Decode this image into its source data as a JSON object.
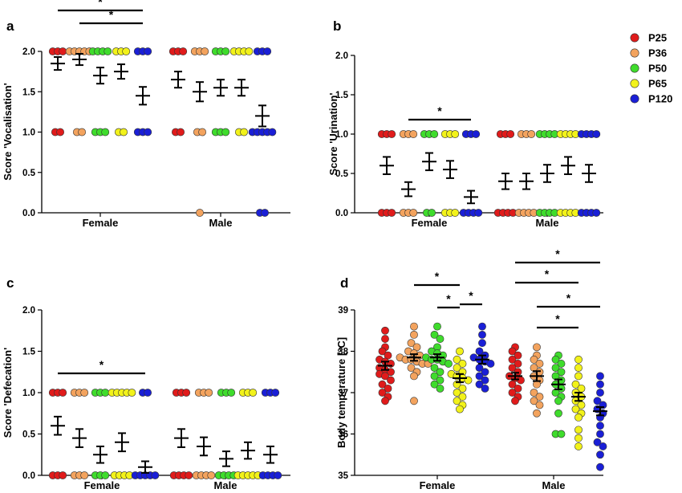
{
  "colors": {
    "P25": "#e01b1b",
    "P36": "#f3a35e",
    "P50": "#3fdc2c",
    "P65": "#f2f21a",
    "P120": "#1a1fd6"
  },
  "legend": [
    "P25",
    "P36",
    "P50",
    "P65",
    "P120"
  ],
  "chart_data": [
    {
      "panel": "a",
      "type": "scatter",
      "ylabel": "Score 'Vocalisation'",
      "ylim": [
        0,
        2.0
      ],
      "yticks": [
        "0.0",
        "0.5",
        "1.0",
        "1.5",
        "2.0"
      ],
      "categories": [
        "Female",
        "Male"
      ],
      "groups": [
        "P25",
        "P36",
        "P50",
        "P65",
        "P120"
      ],
      "means": [
        [
          1.85,
          1.9,
          1.7,
          1.75,
          1.45
        ],
        [
          1.65,
          1.5,
          1.55,
          1.55,
          1.2
        ]
      ],
      "sem": [
        [
          0.08,
          0.07,
          0.1,
          0.09,
          0.11
        ],
        [
          0.1,
          0.12,
          0.1,
          0.1,
          0.13
        ]
      ],
      "points": [
        [
          {
            "2.0": 3,
            "1.0": 2
          },
          {
            "2.0": 5,
            "1.0": 2
          },
          {
            "2.0": 4,
            "1.0": 3
          },
          {
            "2.0": 3,
            "1.0": 2
          },
          {
            "2.0": 3,
            "1.0": 3
          }
        ],
        [
          {
            "2.0": 3,
            "1.0": 2
          },
          {
            "2.0": 3,
            "1.0": 2,
            "0.0": 1
          },
          {
            "2.0": 3,
            "1.0": 3
          },
          {
            "2.0": 4,
            "1.0": 2
          },
          {
            "2.0": 3,
            "1.0": 5,
            "0.0": 2
          }
        ]
      ],
      "significance": [
        {
          "category": "Female",
          "from": "P25",
          "to": "P120",
          "label": "*"
        },
        {
          "category": "Female",
          "from": "P36",
          "to": "P120",
          "label": "*"
        }
      ]
    },
    {
      "panel": "b",
      "type": "scatter",
      "ylabel": "Score 'Urination'",
      "ylim": [
        0,
        2.0
      ],
      "yticks": [
        "0.0",
        "0.5",
        "1.0",
        "1.5",
        "2.0"
      ],
      "categories": [
        "Female",
        "Male"
      ],
      "groups": [
        "P25",
        "P36",
        "P50",
        "P65",
        "P120"
      ],
      "means": [
        [
          0.6,
          0.3,
          0.65,
          0.55,
          0.2
        ],
        [
          0.4,
          0.4,
          0.5,
          0.6,
          0.5
        ]
      ],
      "sem": [
        [
          0.11,
          0.09,
          0.11,
          0.11,
          0.08
        ],
        [
          0.1,
          0.1,
          0.11,
          0.11,
          0.11
        ]
      ],
      "points": [
        [
          {
            "1.0": 3,
            "0.0": 3
          },
          {
            "1.0": 3,
            "0.0": 3
          },
          {
            "1.0": 3,
            "0.0": 2
          },
          {
            "1.0": 3,
            "0.0": 3
          },
          {
            "1.0": 3,
            "0.0": 4
          }
        ],
        [
          {
            "1.0": 3,
            "0.0": 4
          },
          {
            "1.0": 3,
            "0.0": 4
          },
          {
            "1.0": 4,
            "0.0": 4
          },
          {
            "1.0": 4,
            "0.0": 4
          },
          {
            "1.0": 4,
            "0.0": 4
          }
        ]
      ],
      "significance": [
        {
          "category": "Female",
          "from": "P36",
          "to": "P120",
          "label": "*"
        }
      ]
    },
    {
      "panel": "c",
      "type": "scatter",
      "ylabel": "Score 'Defecation'",
      "ylim": [
        0,
        2.0
      ],
      "yticks": [
        "0.0",
        "0.5",
        "1.0",
        "1.5",
        "2.0"
      ],
      "categories": [
        "Female",
        "Male"
      ],
      "groups": [
        "P25",
        "P36",
        "P50",
        "P65",
        "P120"
      ],
      "means": [
        [
          0.6,
          0.45,
          0.25,
          0.4,
          0.1
        ],
        [
          0.45,
          0.35,
          0.2,
          0.3,
          0.25
        ]
      ],
      "sem": [
        [
          0.11,
          0.11,
          0.1,
          0.11,
          0.07
        ],
        [
          0.11,
          0.11,
          0.09,
          0.1,
          0.1
        ]
      ],
      "points": [
        [
          {
            "1.0": 3,
            "0.0": 3
          },
          {
            "1.0": 3,
            "0.0": 3
          },
          {
            "1.0": 3,
            "0.0": 3
          },
          {
            "1.0": 5,
            "0.0": 4
          },
          {
            "1.0": 2,
            "0.0": 5
          }
        ],
        [
          {
            "1.0": 3,
            "0.0": 4
          },
          {
            "1.0": 3,
            "0.0": 4
          },
          {
            "1.0": 3,
            "0.0": 4
          },
          {
            "1.0": 3,
            "0.0": 5
          },
          {
            "1.0": 3,
            "0.0": 4
          }
        ]
      ],
      "significance": [
        {
          "category": "Female",
          "from": "P25",
          "to": "P120",
          "label": "*"
        }
      ]
    },
    {
      "panel": "d",
      "type": "scatter",
      "ylabel": "Body temperature [°C]",
      "ylim": [
        35,
        39
      ],
      "yticks": [
        "35",
        "36",
        "37",
        "38",
        "39"
      ],
      "categories": [
        "Female",
        "Male"
      ],
      "groups": [
        "P25",
        "P36",
        "P50",
        "P65",
        "P120"
      ],
      "means": [
        [
          37.65,
          37.85,
          37.85,
          37.35,
          37.8
        ],
        [
          37.4,
          37.4,
          37.2,
          36.9,
          36.55
        ]
      ],
      "sem": [
        [
          0.1,
          0.08,
          0.08,
          0.1,
          0.1
        ],
        [
          0.08,
          0.12,
          0.12,
          0.1,
          0.1
        ]
      ],
      "values": [
        [
          [
            38.5,
            38.3,
            38.1,
            38.0,
            37.9,
            37.8,
            37.75,
            37.7,
            37.6,
            37.55,
            37.5,
            37.45,
            37.4,
            37.3,
            37.2,
            37.1,
            37.0,
            36.9,
            36.8
          ],
          [
            38.6,
            38.4,
            38.2,
            38.1,
            38.0,
            37.95,
            37.9,
            37.85,
            37.8,
            37.8,
            37.75,
            37.7,
            37.7,
            37.6,
            37.5,
            37.4,
            36.8
          ],
          [
            38.6,
            38.4,
            38.3,
            38.1,
            38.0,
            37.95,
            37.9,
            37.85,
            37.8,
            37.8,
            37.75,
            37.7,
            37.6,
            37.5,
            37.4,
            37.3,
            37.2,
            37.1
          ],
          [
            38.0,
            37.8,
            37.7,
            37.6,
            37.5,
            37.45,
            37.4,
            37.35,
            37.3,
            37.2,
            37.1,
            37.0,
            36.9,
            36.8,
            36.7,
            36.6
          ],
          [
            38.6,
            38.4,
            38.2,
            38.0,
            37.9,
            37.85,
            37.8,
            37.75,
            37.7,
            37.6,
            37.5,
            37.4,
            37.3,
            37.2,
            37.1
          ]
        ],
        [
          [
            38.1,
            38.0,
            37.9,
            37.8,
            37.7,
            37.6,
            37.5,
            37.4,
            37.35,
            37.3,
            37.2,
            37.1,
            37.0,
            36.9,
            36.8
          ],
          [
            38.1,
            37.9,
            37.8,
            37.7,
            37.6,
            37.5,
            37.4,
            37.3,
            37.2,
            37.0,
            36.9,
            36.8,
            36.7,
            36.5
          ],
          [
            37.9,
            37.8,
            37.7,
            37.6,
            37.5,
            37.4,
            37.3,
            37.2,
            37.1,
            37.0,
            36.9,
            36.8,
            36.5,
            36.0,
            36.0
          ],
          [
            37.8,
            37.6,
            37.4,
            37.2,
            37.1,
            37.0,
            36.9,
            36.8,
            36.7,
            36.6,
            36.5,
            36.4,
            36.1,
            35.9,
            35.7
          ],
          [
            37.4,
            37.2,
            37.0,
            36.8,
            36.7,
            36.6,
            36.5,
            36.4,
            36.2,
            36.0,
            35.8,
            35.7,
            35.5,
            35.2
          ]
        ]
      ],
      "significance": [
        {
          "category": "Female",
          "from": "P36",
          "to": "P65",
          "label": "*"
        },
        {
          "category": "Female",
          "from": "P50",
          "to": "P65",
          "label": "*"
        },
        {
          "category": "Female",
          "from": "P65",
          "to": "P120",
          "label": "*"
        },
        {
          "category": "Male",
          "from": "P25",
          "to": "P120",
          "label": "*"
        },
        {
          "category": "Male",
          "from": "P25",
          "to": "P65",
          "label": "*"
        },
        {
          "category": "Male",
          "from": "P36",
          "to": "P120",
          "label": "*"
        },
        {
          "category": "Male",
          "from": "P36",
          "to": "P65",
          "label": "*"
        }
      ]
    }
  ]
}
